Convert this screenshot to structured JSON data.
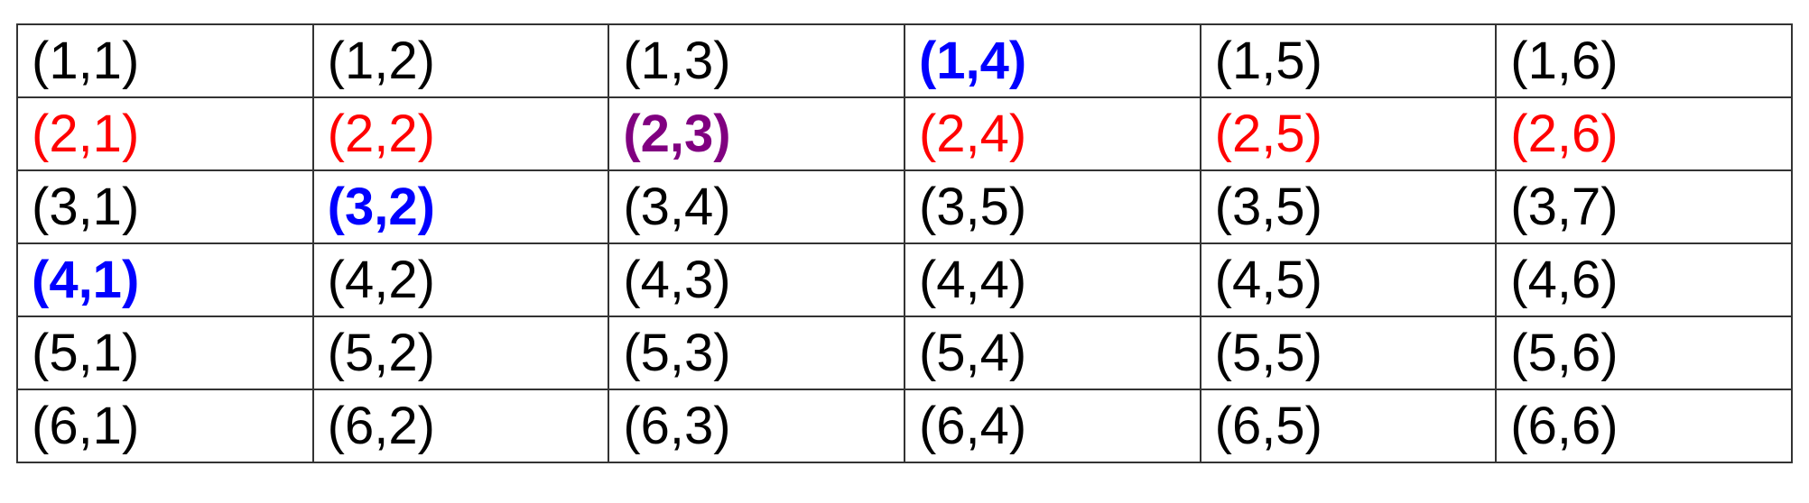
{
  "colors": {
    "default": "#000000",
    "red": "#ff0000",
    "blue": "#0000ff",
    "purple": "#800080"
  },
  "table": {
    "rows": [
      [
        {
          "text": "(1,1)",
          "color": "default",
          "bold": false
        },
        {
          "text": "(1,2)",
          "color": "default",
          "bold": false
        },
        {
          "text": "(1,3)",
          "color": "default",
          "bold": false
        },
        {
          "text": "(1,4)",
          "color": "blue",
          "bold": true
        },
        {
          "text": "(1,5)",
          "color": "default",
          "bold": false
        },
        {
          "text": "(1,6)",
          "color": "default",
          "bold": false
        }
      ],
      [
        {
          "text": "(2,1)",
          "color": "red",
          "bold": false
        },
        {
          "text": "(2,2)",
          "color": "red",
          "bold": false
        },
        {
          "text": "(2,3)",
          "color": "purple",
          "bold": true
        },
        {
          "text": "(2,4)",
          "color": "red",
          "bold": false
        },
        {
          "text": "(2,5)",
          "color": "red",
          "bold": false
        },
        {
          "text": "(2,6)",
          "color": "red",
          "bold": false
        }
      ],
      [
        {
          "text": "(3,1)",
          "color": "default",
          "bold": false
        },
        {
          "text": "(3,2)",
          "color": "blue",
          "bold": true
        },
        {
          "text": "(3,4)",
          "color": "default",
          "bold": false
        },
        {
          "text": "(3,5)",
          "color": "default",
          "bold": false
        },
        {
          "text": "(3,5)",
          "color": "default",
          "bold": false
        },
        {
          "text": "(3,7)",
          "color": "default",
          "bold": false
        }
      ],
      [
        {
          "text": "(4,1)",
          "color": "blue",
          "bold": true
        },
        {
          "text": "(4,2)",
          "color": "default",
          "bold": false
        },
        {
          "text": "(4,3)",
          "color": "default",
          "bold": false
        },
        {
          "text": "(4,4)",
          "color": "default",
          "bold": false
        },
        {
          "text": "(4,5)",
          "color": "default",
          "bold": false
        },
        {
          "text": "(4,6)",
          "color": "default",
          "bold": false
        }
      ],
      [
        {
          "text": "(5,1)",
          "color": "default",
          "bold": false
        },
        {
          "text": "(5,2)",
          "color": "default",
          "bold": false
        },
        {
          "text": "(5,3)",
          "color": "default",
          "bold": false
        },
        {
          "text": "(5,4)",
          "color": "default",
          "bold": false
        },
        {
          "text": "(5,5)",
          "color": "default",
          "bold": false
        },
        {
          "text": "(5,6)",
          "color": "default",
          "bold": false
        }
      ],
      [
        {
          "text": "(6,1)",
          "color": "default",
          "bold": false
        },
        {
          "text": "(6,2)",
          "color": "default",
          "bold": false
        },
        {
          "text": "(6,3)",
          "color": "default",
          "bold": false
        },
        {
          "text": "(6,4)",
          "color": "default",
          "bold": false
        },
        {
          "text": "(6,5)",
          "color": "default",
          "bold": false
        },
        {
          "text": "(6,6)",
          "color": "default",
          "bold": false
        }
      ]
    ]
  }
}
